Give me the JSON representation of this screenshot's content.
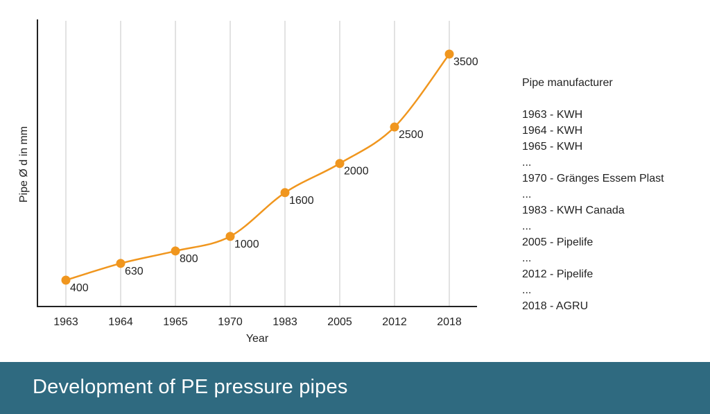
{
  "chart_data": {
    "type": "line",
    "categories": [
      "1963",
      "1964",
      "1965",
      "1970",
      "1983",
      "2005",
      "2012",
      "2018"
    ],
    "values": [
      400,
      630,
      800,
      1000,
      1600,
      2000,
      2500,
      3500
    ],
    "data_labels": [
      "400",
      "630",
      "800",
      "1000",
      "1600",
      "2000",
      "2500",
      "3500"
    ],
    "xlabel": "Year",
    "ylabel": "Pipe Ø d in mm",
    "grid": "vertical",
    "color": "#f0961e",
    "grid_color": "#e2e2e2",
    "axis_color": "#222222"
  },
  "legend": {
    "title": "Pipe manufacturer",
    "items": [
      "1963 - KWH",
      "1964 - KWH",
      "1965 - KWH",
      "...",
      "1970 - Gränges Essem Plast",
      "...",
      "1983 - KWH Canada",
      "...",
      "2005 - Pipelife",
      "...",
      "2012 - Pipelife",
      "...",
      "2018 - AGRU"
    ]
  },
  "footer": {
    "title": "Development of PE pressure pipes",
    "background": "#2f6a80"
  }
}
